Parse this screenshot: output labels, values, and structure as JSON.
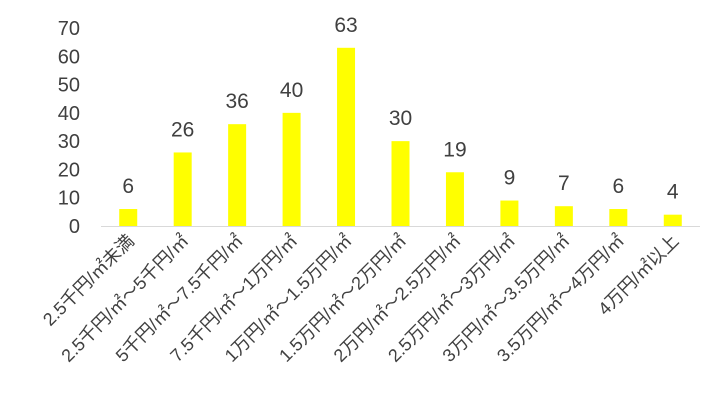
{
  "chart_data": {
    "type": "bar",
    "categories": [
      "2.5千円/㎡未満",
      "2.5千円/㎡～5千円/㎡",
      "5千円/㎡～7.5千円/㎡",
      "7.5千円/㎡～1万円/㎡",
      "1万円/㎡～1.5万円/㎡",
      "1.5万円/㎡～2万円/㎡",
      "2万円/㎡～2.5万円/㎡",
      "2.5万円/㎡～3万円/㎡",
      "3万円/㎡～3.5万円/㎡",
      "3.5万円/㎡～4万円/㎡",
      "4万円/㎡以上"
    ],
    "values": [
      6,
      26,
      36,
      40,
      63,
      30,
      19,
      9,
      7,
      6,
      4
    ],
    "data_labels": [
      "6",
      "26",
      "36",
      "40",
      "63",
      "30",
      "19",
      "9",
      "7",
      "6",
      "4"
    ],
    "yticks": [
      "0",
      "10",
      "20",
      "30",
      "40",
      "50",
      "60",
      "70"
    ],
    "ylim": [
      0,
      70
    ],
    "grid": false,
    "legend": "none",
    "bar_color": "#FFFF00",
    "axis_color": "#D9D9D9",
    "text_color": "#404040"
  }
}
